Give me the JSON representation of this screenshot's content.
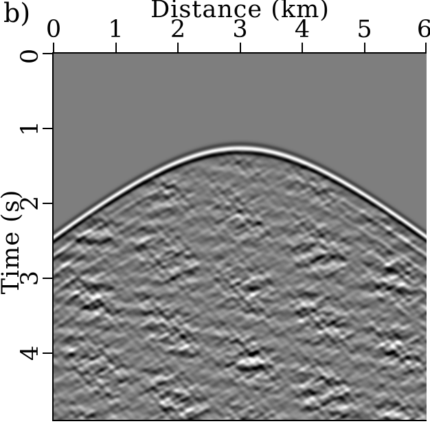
{
  "panel_label": "b)",
  "chart_data": {
    "type": "heatmap",
    "subtype": "seismic-shot-gather",
    "title": "",
    "xlabel": "Distance (km)",
    "ylabel": "Time (s)",
    "x_range": [
      0,
      6
    ],
    "y_range": [
      0,
      4.89
    ],
    "x_ticks": [
      "0",
      "1",
      "2",
      "3",
      "4",
      "5",
      "6"
    ],
    "y_ticks": [
      "0",
      "1",
      "2",
      "3",
      "4"
    ],
    "grid": false,
    "legend": false,
    "colormap": "grayscale",
    "colors": {
      "quiet_background_gray": "#7d7d7d",
      "ink": "#000000",
      "paper": "#ffffff"
    },
    "first_arrival": {
      "shape": "hyperbola",
      "apex_distance_km": 3.0,
      "apex_time_s": 1.26,
      "moveout_velocity_km_s": 1.43,
      "edge_time_s": 2.45,
      "wavelet_polarity": "weak-dark / bright-white / strong-dark (increasing time)"
    },
    "render": {
      "noise_seed": 11,
      "noise_rms": 0.34,
      "num_noise_waves": 42,
      "multiple_spacing_px": 26,
      "multiple_amp": 0.78,
      "multiple_decay": 0.3,
      "base_gray": 126,
      "gray_gain": 130
    }
  }
}
